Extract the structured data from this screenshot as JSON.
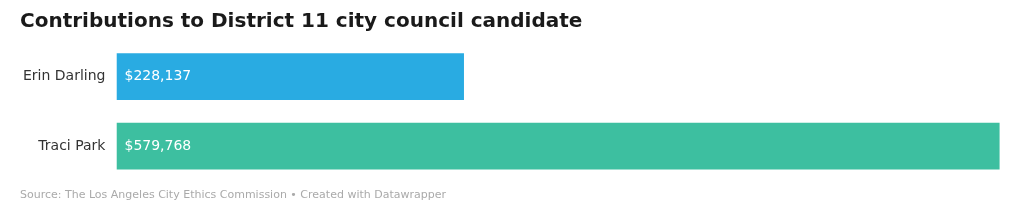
{
  "chart_data": {
    "type": "bar",
    "orientation": "horizontal",
    "title": "Contributions to District 11 city council candidate",
    "annotations": [
      "Source: The Los Angeles City Ethics Commission • Created with Datawrapper"
    ],
    "categories": [
      "Erin Darling",
      "Traci Park"
    ],
    "values": [
      228137,
      579768
    ],
    "value_labels": [
      "$228,137",
      "$579,768"
    ],
    "colors": [
      "#29abe2",
      "#3dbfa0"
    ],
    "xlim": [
      0,
      582666.84
    ],
    "data_labels": true,
    "tick_labels": "y",
    "grid": false
  }
}
